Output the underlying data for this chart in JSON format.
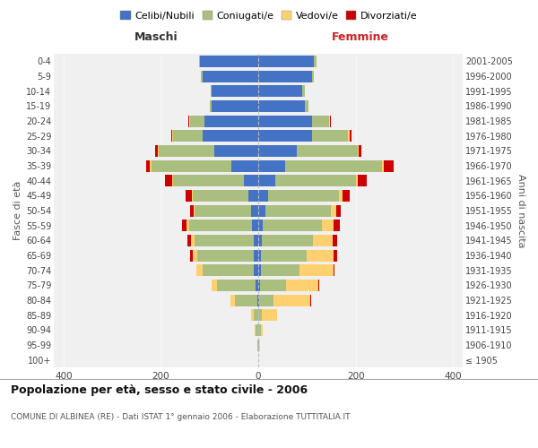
{
  "age_groups": [
    "100+",
    "95-99",
    "90-94",
    "85-89",
    "80-84",
    "75-79",
    "70-74",
    "65-69",
    "60-64",
    "55-59",
    "50-54",
    "45-49",
    "40-44",
    "35-39",
    "30-34",
    "25-29",
    "20-24",
    "15-19",
    "10-14",
    "5-9",
    "0-4"
  ],
  "birth_years": [
    "≤ 1905",
    "1906-1910",
    "1911-1915",
    "1916-1920",
    "1921-1925",
    "1926-1930",
    "1931-1935",
    "1936-1940",
    "1941-1945",
    "1946-1950",
    "1951-1955",
    "1956-1960",
    "1961-1965",
    "1966-1970",
    "1971-1975",
    "1976-1980",
    "1981-1985",
    "1986-1990",
    "1991-1995",
    "1996-2000",
    "2001-2005"
  ],
  "male": {
    "celibi": [
      0,
      0,
      0,
      0,
      2,
      5,
      10,
      10,
      10,
      12,
      15,
      20,
      30,
      55,
      90,
      115,
      110,
      95,
      95,
      115,
      120
    ],
    "coniugati": [
      0,
      2,
      5,
      10,
      45,
      80,
      105,
      115,
      120,
      130,
      115,
      115,
      145,
      165,
      115,
      60,
      30,
      5,
      2,
      2,
      2
    ],
    "vedovi": [
      0,
      0,
      2,
      5,
      10,
      10,
      12,
      10,
      8,
      5,
      2,
      2,
      2,
      2,
      2,
      2,
      2,
      0,
      0,
      0,
      0
    ],
    "divorziati": [
      0,
      0,
      0,
      0,
      0,
      0,
      0,
      5,
      8,
      10,
      8,
      12,
      15,
      8,
      5,
      2,
      2,
      0,
      0,
      0,
      0
    ]
  },
  "female": {
    "nubili": [
      0,
      0,
      0,
      0,
      2,
      3,
      5,
      5,
      8,
      10,
      15,
      20,
      35,
      55,
      80,
      110,
      110,
      95,
      90,
      110,
      115
    ],
    "coniugate": [
      0,
      2,
      5,
      8,
      30,
      55,
      80,
      95,
      105,
      120,
      135,
      145,
      165,
      200,
      125,
      75,
      35,
      8,
      5,
      5,
      5
    ],
    "vedove": [
      0,
      2,
      5,
      30,
      75,
      65,
      70,
      55,
      40,
      25,
      10,
      8,
      5,
      3,
      2,
      2,
      2,
      0,
      0,
      0,
      0
    ],
    "divorziate": [
      0,
      0,
      0,
      0,
      2,
      2,
      2,
      8,
      10,
      12,
      10,
      15,
      18,
      20,
      5,
      5,
      2,
      0,
      0,
      0,
      0
    ]
  },
  "colors": {
    "celibi_nubili": "#4472C4",
    "coniugati": "#AABF7F",
    "vedovi": "#FFD070",
    "divorziati": "#CC0000"
  },
  "xlim": 420,
  "title": "Popolazione per età, sesso e stato civile - 2006",
  "subtitle": "COMUNE DI ALBINEA (RE) - Dati ISTAT 1° gennaio 2006 - Elaborazione TUTTITALIA.IT",
  "xlabel_left": "Maschi",
  "xlabel_right": "Femmine",
  "ylabel_left": "Fasce di età",
  "ylabel_right": "Anni di nascita",
  "legend_labels": [
    "Celibi/Nubili",
    "Coniugati/e",
    "Vedovi/e",
    "Divorziati/e"
  ],
  "bg_color": "#FFFFFF",
  "plot_bg": "#F0F0F0",
  "grid_color": "#CCCCCC"
}
